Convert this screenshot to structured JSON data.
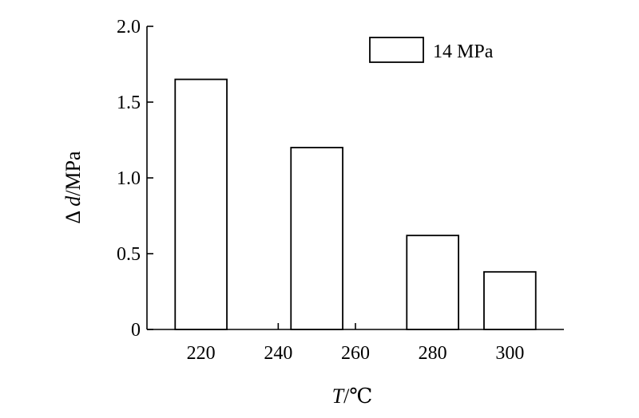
{
  "chart_data": {
    "type": "bar",
    "categories": [
      "220",
      "250",
      "280",
      "300"
    ],
    "x_values": [
      220,
      250,
      280,
      300
    ],
    "series": [
      {
        "name": "14 MPa",
        "values": [
          1.65,
          1.2,
          0.62,
          0.38
        ]
      }
    ],
    "xlabel_italic": "T",
    "xlabel_rest": "/℃",
    "ylabel_prefix": "Δ ",
    "ylabel_italic": "d",
    "ylabel_rest": "/MPa",
    "x_ticks": [
      220,
      240,
      260,
      280,
      300
    ],
    "x_tick_labels": [
      "220",
      "240",
      "260",
      "280",
      "300"
    ],
    "y_ticks": [
      0,
      0.5,
      1.0,
      1.5,
      2.0
    ],
    "y_tick_labels": [
      "0",
      "0.5",
      "1.0",
      "1.5",
      "2.0"
    ],
    "xlim": [
      206,
      314
    ],
    "ylim": [
      0,
      2.0
    ],
    "legend_position": "top-right",
    "grid": false,
    "bar_fill": "#ffffff",
    "bar_stroke": "#000000"
  }
}
